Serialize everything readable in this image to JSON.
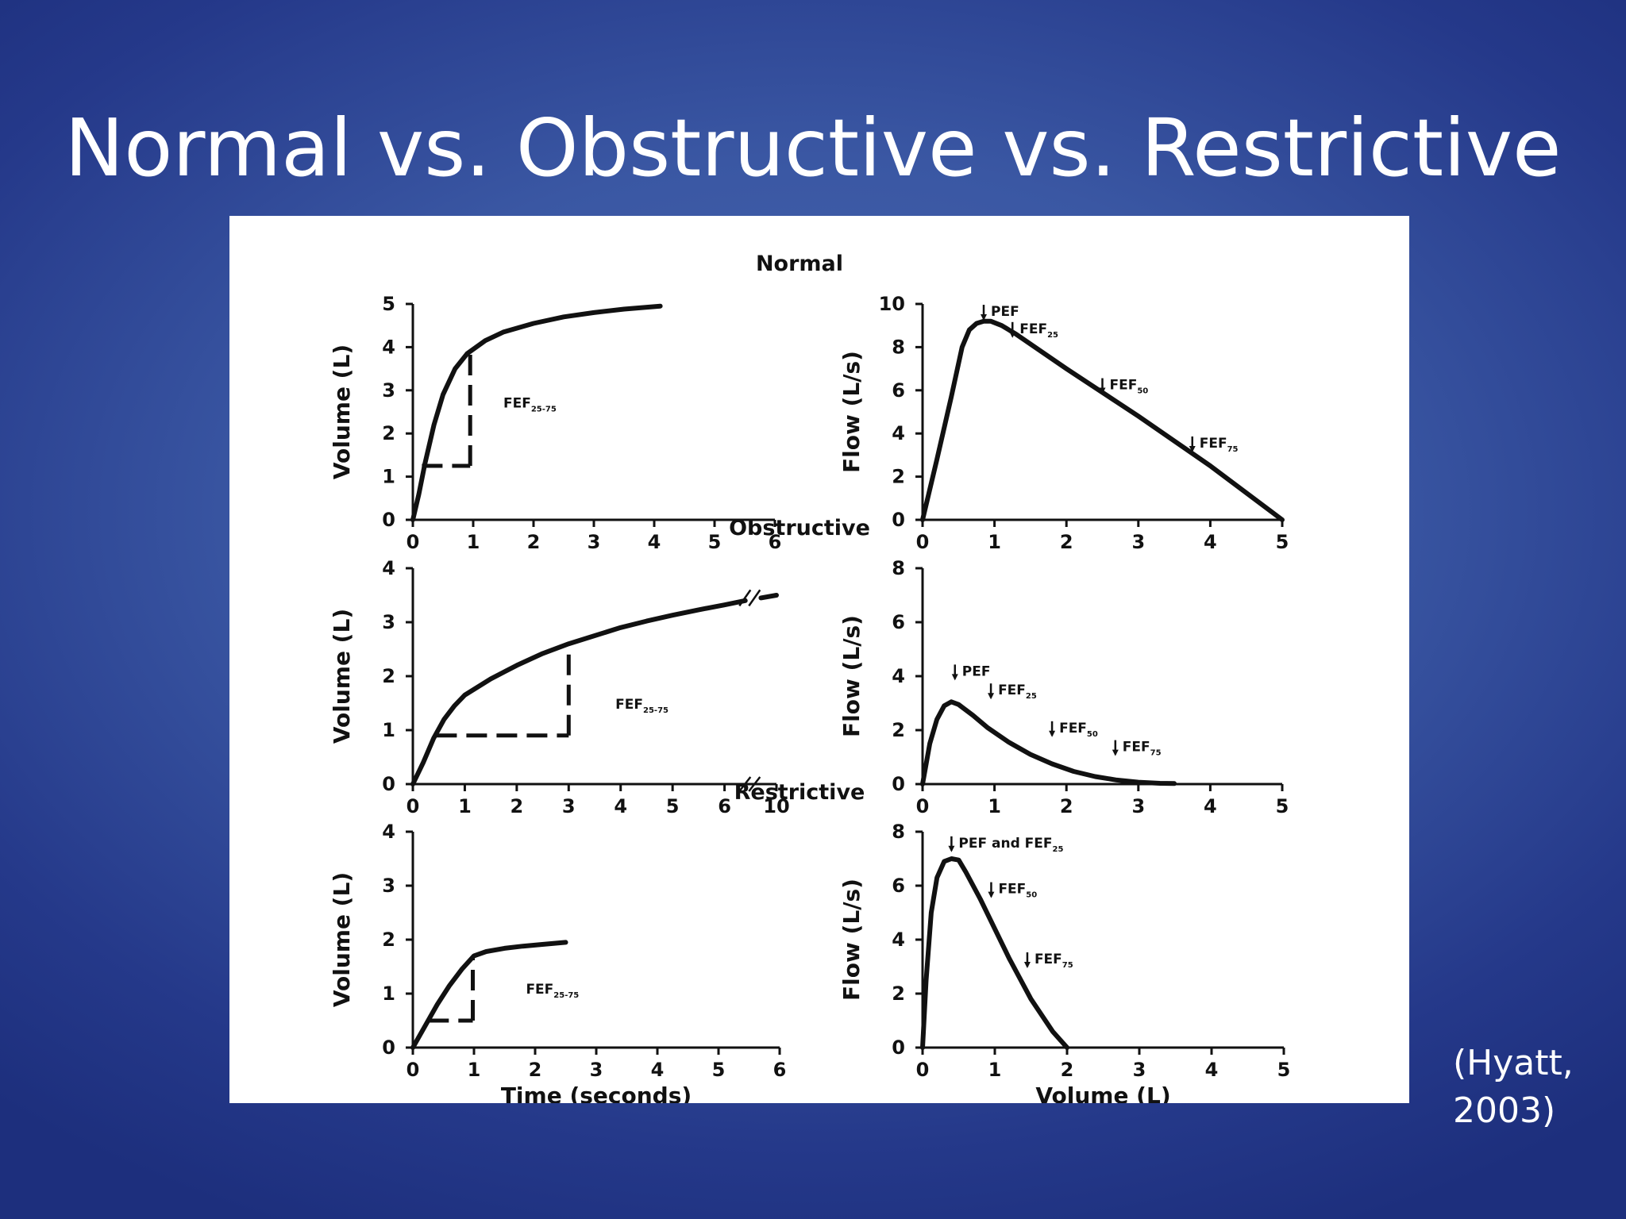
{
  "slide": {
    "title": "Normal vs. Obstructive vs. Restrictive",
    "citation_line1": "(Hyatt,",
    "citation_line2": "2003)",
    "background_color": "#3a57a3"
  },
  "chart_data": [
    {
      "type": "line",
      "panel_title": "Normal",
      "ylabel": "Volume (L)",
      "xlabel": "",
      "xticks": [
        "0",
        "1",
        "2",
        "3",
        "4",
        "5",
        "6"
      ],
      "yticks": [
        "0",
        "1",
        "2",
        "3",
        "4",
        "5"
      ],
      "xlim": [
        0,
        6
      ],
      "ylim": [
        0,
        5
      ],
      "series": [
        {
          "x": [
            0,
            0.1,
            0.2,
            0.35,
            0.5,
            0.7,
            0.9,
            1.2,
            1.5,
            2,
            2.5,
            3,
            3.5,
            4.1
          ],
          "y": [
            0,
            0.6,
            1.3,
            2.2,
            2.9,
            3.5,
            3.85,
            4.15,
            4.35,
            4.55,
            4.7,
            4.8,
            4.88,
            4.95
          ]
        }
      ],
      "dashed": [
        {
          "x": [
            0.15,
            0.95
          ],
          "y": [
            1.25,
            1.25
          ]
        },
        {
          "x": [
            0.95,
            0.95
          ],
          "y": [
            1.25,
            3.85
          ]
        }
      ],
      "annotations": [
        {
          "text": "FEF",
          "sub": "25-75",
          "x": 1.5,
          "y": 2.6
        }
      ]
    },
    {
      "type": "line",
      "panel_title": "",
      "ylabel": "Flow (L/s)",
      "xlabel": "",
      "xticks": [
        "0",
        "1",
        "2",
        "3",
        "4",
        "5"
      ],
      "yticks": [
        "0",
        "2",
        "4",
        "6",
        "8",
        "10"
      ],
      "xlim": [
        0,
        5
      ],
      "ylim": [
        0,
        10
      ],
      "series": [
        {
          "x": [
            0,
            0.2,
            0.4,
            0.55,
            0.65,
            0.75,
            0.85,
            0.95,
            1.1,
            1.3,
            2,
            3,
            4,
            5
          ],
          "y": [
            0,
            2.8,
            5.7,
            8,
            8.8,
            9.1,
            9.2,
            9.2,
            9,
            8.6,
            7,
            4.8,
            2.5,
            0
          ]
        }
      ],
      "annotations": [
        {
          "text": "PEF",
          "sub": "",
          "x": 0.85,
          "y": 9.3
        },
        {
          "text": "FEF",
          "sub": "25",
          "x": 1.25,
          "y": 8.5
        },
        {
          "text": "FEF",
          "sub": "50",
          "x": 2.5,
          "y": 5.9
        },
        {
          "text": "FEF",
          "sub": "75",
          "x": 3.75,
          "y": 3.2
        }
      ]
    },
    {
      "type": "line",
      "panel_title": "Obstructive",
      "ylabel": "Volume (L)",
      "xlabel": "",
      "xticks": [
        "0",
        "1",
        "2",
        "3",
        "4",
        "5",
        "6",
        "10"
      ],
      "yticks": [
        "0",
        "1",
        "2",
        "3",
        "4"
      ],
      "xlim": [
        0,
        7
      ],
      "ylim": [
        0,
        4
      ],
      "axis_break": true,
      "series": [
        {
          "x": [
            0,
            0.2,
            0.4,
            0.6,
            0.8,
            1,
            1.5,
            2,
            2.5,
            3,
            3.5,
            4,
            4.5,
            5,
            5.5,
            6,
            6.4
          ],
          "y": [
            0,
            0.4,
            0.85,
            1.2,
            1.45,
            1.65,
            1.95,
            2.2,
            2.42,
            2.6,
            2.75,
            2.9,
            3.02,
            3.13,
            3.23,
            3.32,
            3.4
          ]
        }
      ],
      "series_after_break": [
        {
          "x": [
            6.7,
            7.0
          ],
          "y": [
            3.45,
            3.5
          ]
        }
      ],
      "dashed": [
        {
          "x": [
            0.45,
            3
          ],
          "y": [
            0.9,
            0.9
          ]
        },
        {
          "x": [
            3,
            3
          ],
          "y": [
            0.9,
            2.6
          ]
        }
      ],
      "annotations": [
        {
          "text": "FEF",
          "sub": "25-75",
          "x": 3.9,
          "y": 1.4
        }
      ]
    },
    {
      "type": "line",
      "panel_title": "",
      "ylabel": "Flow (L/s)",
      "xlabel": "",
      "xticks": [
        "0",
        "1",
        "2",
        "3",
        "4",
        "5"
      ],
      "yticks": [
        "0",
        "2",
        "4",
        "6",
        "8"
      ],
      "xlim": [
        0,
        5
      ],
      "ylim": [
        0,
        8
      ],
      "series": [
        {
          "x": [
            0,
            0.1,
            0.2,
            0.3,
            0.4,
            0.5,
            0.7,
            0.9,
            1.2,
            1.5,
            1.8,
            2.1,
            2.4,
            2.7,
            3,
            3.3,
            3.5
          ],
          "y": [
            0,
            1.5,
            2.4,
            2.9,
            3.05,
            2.95,
            2.55,
            2.1,
            1.55,
            1.1,
            0.75,
            0.47,
            0.28,
            0.15,
            0.07,
            0.03,
            0.02
          ]
        }
      ],
      "annotations": [
        {
          "text": "PEF",
          "sub": "",
          "x": 0.45,
          "y": 3.9
        },
        {
          "text": "FEF",
          "sub": "25",
          "x": 0.95,
          "y": 3.2
        },
        {
          "text": "FEF",
          "sub": "50",
          "x": 1.8,
          "y": 1.8
        },
        {
          "text": "FEF",
          "sub": "75",
          "x": 2.68,
          "y": 1.1
        }
      ]
    },
    {
      "type": "line",
      "panel_title": "Restrictive",
      "ylabel": "Volume (L)",
      "xlabel": "Time (seconds)",
      "xticks": [
        "0",
        "1",
        "2",
        "3",
        "4",
        "5",
        "6"
      ],
      "yticks": [
        "0",
        "1",
        "2",
        "3",
        "4"
      ],
      "xlim": [
        0,
        6
      ],
      "ylim": [
        0,
        4
      ],
      "series": [
        {
          "x": [
            0,
            0.2,
            0.4,
            0.6,
            0.8,
            1,
            1.2,
            1.5,
            1.8,
            2.1,
            2.5
          ],
          "y": [
            0,
            0.4,
            0.8,
            1.15,
            1.45,
            1.7,
            1.78,
            1.84,
            1.88,
            1.91,
            1.95
          ]
        }
      ],
      "dashed": [
        {
          "x": [
            0.25,
            0.98
          ],
          "y": [
            0.5,
            0.5
          ]
        },
        {
          "x": [
            0.98,
            0.98
          ],
          "y": [
            0.5,
            1.7
          ]
        }
      ],
      "annotations": [
        {
          "text": "FEF",
          "sub": "25-75",
          "x": 1.85,
          "y": 1.0
        }
      ]
    },
    {
      "type": "line",
      "panel_title": "",
      "ylabel": "Flow (L/s)",
      "xlabel": "Volume (L)",
      "xticks": [
        "0",
        "1",
        "2",
        "3",
        "4",
        "5"
      ],
      "yticks": [
        "0",
        "2",
        "4",
        "6",
        "8"
      ],
      "xlim": [
        0,
        5
      ],
      "ylim": [
        0,
        8
      ],
      "series": [
        {
          "x": [
            0,
            0.05,
            0.12,
            0.2,
            0.3,
            0.4,
            0.5,
            0.6,
            0.8,
            1,
            1.2,
            1.5,
            1.8,
            2
          ],
          "y": [
            0,
            2.5,
            5,
            6.3,
            6.9,
            7,
            6.95,
            6.5,
            5.5,
            4.4,
            3.3,
            1.8,
            0.6,
            0
          ]
        }
      ],
      "annotations": [
        {
          "text": "PEF and FEF",
          "sub": "25",
          "x": 0.4,
          "y": 7.3
        },
        {
          "text": "FEF",
          "sub": "50",
          "x": 0.95,
          "y": 5.6
        },
        {
          "text": "FEF",
          "sub": "75",
          "x": 1.45,
          "y": 3.0
        }
      ]
    }
  ]
}
